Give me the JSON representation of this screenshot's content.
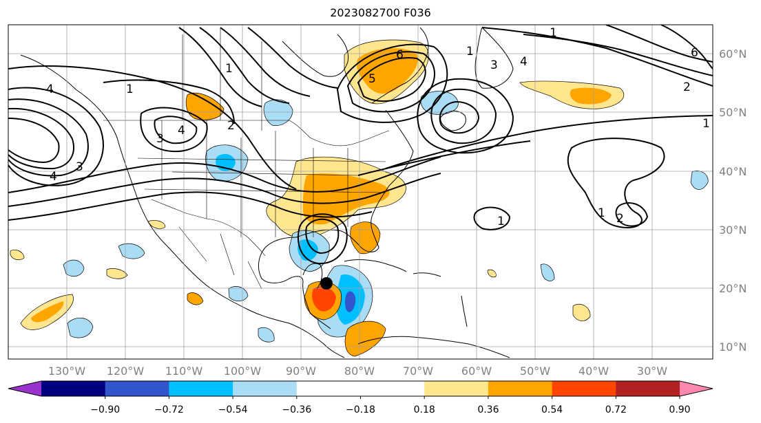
{
  "title": "2023082700 F036",
  "map": {
    "lon_labels": [
      "130°W",
      "120°W",
      "110°W",
      "100°W",
      "90°W",
      "80°W",
      "70°W",
      "60°W",
      "50°W",
      "40°W",
      "30°W"
    ],
    "lat_labels": [
      "60°N",
      "50°N",
      "40°N",
      "30°N",
      "20°N",
      "10°N"
    ],
    "contour_labels": [
      "1",
      "1",
      "1",
      "1",
      "1",
      "2",
      "2",
      "3",
      "3",
      "3",
      "4",
      "4",
      "4",
      "4",
      "5",
      "6",
      "6",
      "1",
      "1",
      "2"
    ]
  },
  "colorbar": {
    "colors": [
      "#9933cc",
      "#000080",
      "#3355cc",
      "#00bfff",
      "#aadcf5",
      "#ffffff",
      "#ffffff",
      "#ffe68f",
      "#ffa500",
      "#ff4500",
      "#b22222",
      "#ff88b0"
    ],
    "tick_labels": [
      "−0.90",
      "−0.72",
      "−0.54",
      "−0.36",
      "−0.18",
      "0.18",
      "0.36",
      "0.54",
      "0.72",
      "0.90"
    ]
  },
  "fill_colors": {
    "light_yellow": "#ffe68f",
    "orange": "#ffa500",
    "red_orange": "#ff4500",
    "light_blue": "#aadcf5",
    "cyan": "#00bfff",
    "blue": "#3355cc"
  }
}
